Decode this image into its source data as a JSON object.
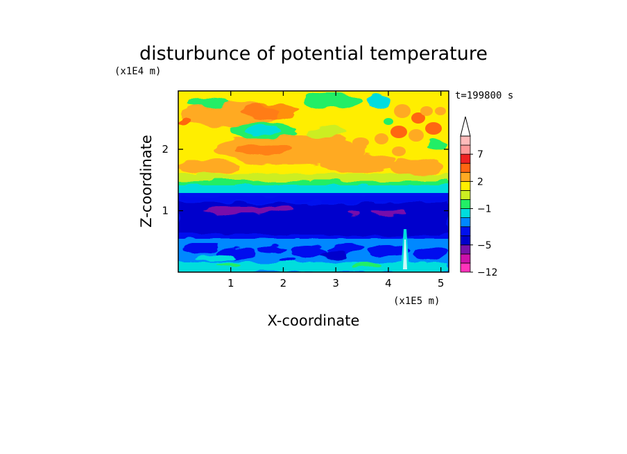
{
  "chart_data": {
    "type": "heatmap",
    "title": "disturbunce of potential temperature",
    "xlabel": "X-coordinate",
    "ylabel": "Z-coordinate",
    "x_unit": "(x1E5 m)",
    "y_unit": "(x1E4 m)",
    "time_label": "t=199800 s",
    "xlim": [
      0,
      5.15
    ],
    "ylim": [
      0,
      2.95
    ],
    "x_ticks": [
      1,
      2,
      3,
      4,
      5
    ],
    "y_ticks": [
      1,
      2
    ],
    "colorbar": {
      "levels": [
        -12,
        -9,
        -7,
        -5,
        -4,
        -3,
        -2,
        -1,
        0,
        1,
        2,
        3,
        5,
        7,
        9,
        11
      ],
      "labeled_levels": [
        -12,
        -5,
        -1,
        2,
        7
      ],
      "colors": [
        "#ff33bb",
        "#cc11aa",
        "#7711aa",
        "#0000cc",
        "#0011ee",
        "#0088ff",
        "#00dddd",
        "#22ee66",
        "#ccee22",
        "#ffee00",
        "#ffaa22",
        "#ff6611",
        "#ee2222",
        "#ff9999",
        "#ffbbbb"
      ],
      "extend": "max"
    },
    "bands": [
      {
        "z_min": 0.0,
        "z_max": 0.15,
        "level": "-1 to 0"
      },
      {
        "z_min": 0.15,
        "z_max": 0.55,
        "level": "-3 to -1"
      },
      {
        "z_min": 0.55,
        "z_max": 1.3,
        "level": "-5 to -4"
      },
      {
        "z_min": 0.9,
        "z_max": 1.05,
        "level": "-7 to -5"
      },
      {
        "z_min": 1.3,
        "z_max": 1.45,
        "level": "-2 to -1"
      },
      {
        "z_min": 1.45,
        "z_max": 2.95,
        "level": "1 to 5"
      }
    ],
    "grid": false
  }
}
